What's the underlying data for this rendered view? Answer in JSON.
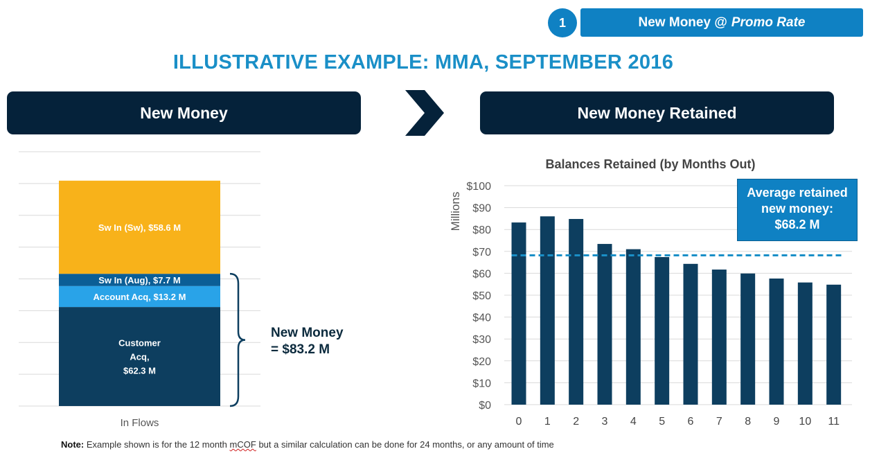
{
  "step": {
    "number": "1",
    "label": "New Money @",
    "label_em": "Promo Rate"
  },
  "title": "ILLUSTRATIVE EXAMPLE: MMA, SEPTEMBER 2016",
  "left_panel": {
    "header": "New Money"
  },
  "right_panel": {
    "header": "New Money Retained"
  },
  "new_money_total": {
    "line1": "New Money",
    "line2": "= $83.2 M"
  },
  "average_box": {
    "line1": "Average retained",
    "line2": "new money:",
    "line3": "$68.2 M"
  },
  "note": {
    "label": "Note:",
    "text_before": "Example shown is for the 12 month",
    "squiggly": "mCOF",
    "text_after": "but a similar calculation can be done for 24 months, or any amount of time"
  },
  "colors": {
    "navy": "#05223a",
    "bar_navy": "#0d3e5f",
    "blue": "#0f81c3",
    "gold": "#f8b21a",
    "light_blue": "#29a3e8",
    "mid_blue": "#0b5e96"
  },
  "chart_data": [
    {
      "type": "bar",
      "stacked": true,
      "categories": [
        "In Flows"
      ],
      "series": [
        {
          "name": "Customer Acq",
          "label_lines": [
            "Customer",
            "Acq,",
            "$62.3 M"
          ],
          "values": [
            62.3
          ],
          "color": "#0d3e5f"
        },
        {
          "name": "Account Acq",
          "label_lines": [
            "Account Acq, $13.2 M"
          ],
          "values": [
            13.2
          ],
          "color": "#29a3e8"
        },
        {
          "name": "Sw In (Aug)",
          "label_lines": [
            "Sw In (Aug), $7.7 M"
          ],
          "values": [
            7.7
          ],
          "color": "#0b5e96"
        },
        {
          "name": "Sw In (Sw)",
          "label_lines": [
            "Sw In (Sw), $58.6 M"
          ],
          "values": [
            58.6
          ],
          "color": "#f8b21a"
        }
      ],
      "ylim": [
        0,
        160
      ],
      "grid": true
    },
    {
      "type": "bar",
      "title": "Balances Retained (by Months Out)",
      "ylabel": "Millions",
      "categories": [
        "0",
        "1",
        "2",
        "3",
        "4",
        "5",
        "6",
        "7",
        "8",
        "9",
        "10",
        "11"
      ],
      "values": [
        83.2,
        86,
        84.8,
        73.4,
        71,
        67.4,
        64.3,
        61.7,
        59.9,
        57.6,
        55.8,
        54.8
      ],
      "y_ticks": [
        "$0",
        "$10",
        "$20",
        "$30",
        "$40",
        "$50",
        "$60",
        "$70",
        "$80",
        "$90",
        "$100"
      ],
      "ylim": [
        0,
        100
      ],
      "average_line": 68.2,
      "grid": true
    }
  ]
}
